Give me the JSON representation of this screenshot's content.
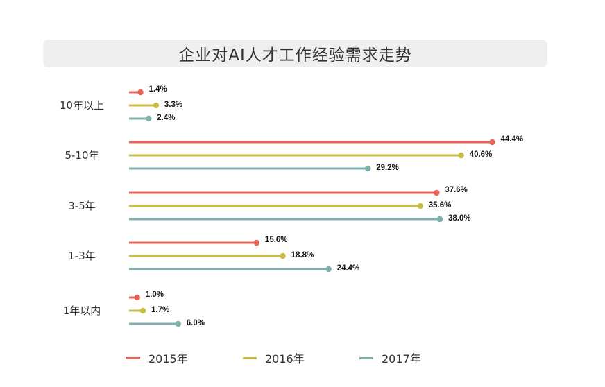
{
  "chart_data": {
    "type": "bar",
    "title": "企业对AI人才工作经验需求走势",
    "categories": [
      "10年以上",
      "5-10年",
      "3-5年",
      "1-3年",
      "1年以内"
    ],
    "series": [
      {
        "name": "2015年",
        "color": "#e8645a",
        "values": [
          1.4,
          44.4,
          37.6,
          15.6,
          1.0
        ],
        "labels": [
          "1.4%",
          "44.4%",
          "37.6%",
          "15.6%",
          "1.0%"
        ]
      },
      {
        "name": "2016年",
        "color": "#c8bc42",
        "values": [
          3.3,
          40.6,
          35.6,
          18.8,
          1.7
        ],
        "labels": [
          "3.3%",
          "40.6%",
          "35.6%",
          "18.8%",
          "1.7%"
        ]
      },
      {
        "name": "2017年",
        "color": "#7fb2ac",
        "values": [
          2.4,
          29.2,
          38.0,
          24.4,
          6.0
        ],
        "labels": [
          "2.4%",
          "29.2%",
          "38.0%",
          "24.4%",
          "6.0%"
        ]
      }
    ],
    "orientation": "horizontal",
    "legend_position": "bottom",
    "grid": false
  }
}
